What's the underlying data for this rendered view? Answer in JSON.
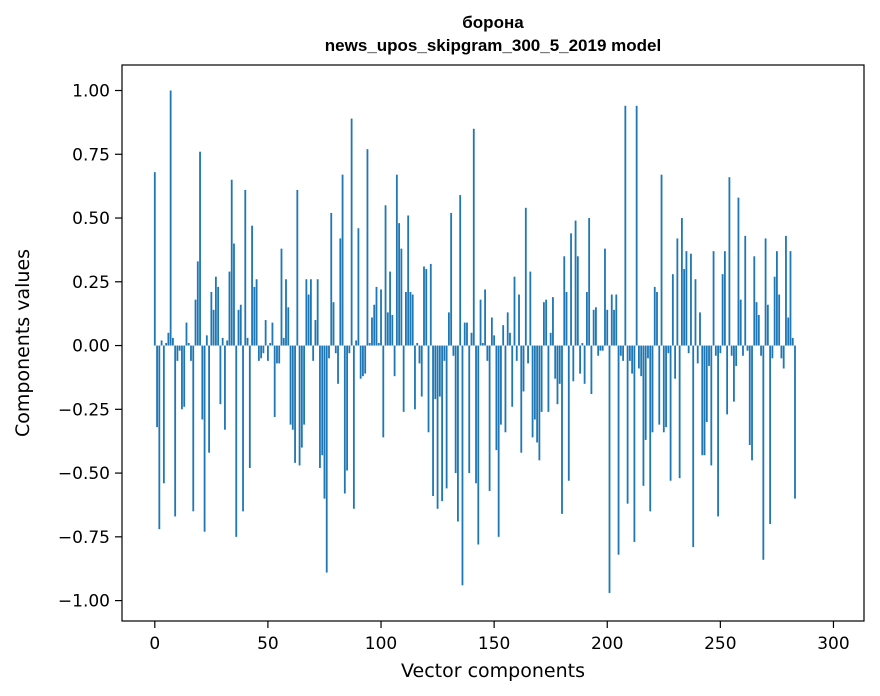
{
  "chart_data": {
    "type": "bar",
    "title_line1": "борона",
    "title_line2": "news_upos_skipgram_300_5_2019 model",
    "xlabel": "Vector components",
    "ylabel": "Components values",
    "xlim": [
      -14.5,
      313.5
    ],
    "ylim": [
      -1.08,
      1.1
    ],
    "xticks": [
      0,
      50,
      100,
      150,
      200,
      250,
      300
    ],
    "xtick_labels": [
      "0",
      "50",
      "100",
      "150",
      "200",
      "250",
      "300"
    ],
    "yticks": [
      1.0,
      0.75,
      0.5,
      0.25,
      0.0,
      -0.25,
      -0.5,
      -0.75,
      -1.0
    ],
    "ytick_labels": [
      "1.00",
      "0.75",
      "0.50",
      "0.25",
      "0.00",
      "−0.25",
      "−0.50",
      "−0.75",
      "−1.00"
    ],
    "bar_color": "#1f77b4",
    "values": [
      0.68,
      -0.32,
      -0.72,
      0.02,
      -0.54,
      0.01,
      0.05,
      1.0,
      0.03,
      -0.67,
      -0.06,
      -0.02,
      -0.25,
      -0.24,
      0.09,
      0.01,
      -0.06,
      -0.65,
      0.18,
      0.33,
      0.76,
      -0.29,
      -0.73,
      0.04,
      -0.42,
      0.21,
      0.14,
      0.27,
      0.23,
      -0.23,
      0.03,
      -0.33,
      0.02,
      0.29,
      0.65,
      0.4,
      -0.75,
      0.14,
      0.16,
      -0.65,
      0.61,
      0.03,
      -0.48,
      0.47,
      0.23,
      0.26,
      -0.06,
      -0.05,
      -0.03,
      0.1,
      -0.06,
      0.01,
      0.09,
      -0.28,
      -0.07,
      -0.07,
      0.38,
      0.03,
      0.26,
      0.15,
      -0.31,
      -0.33,
      -0.46,
      0.61,
      -0.47,
      -0.4,
      -0.31,
      0.26,
      0.2,
      0.26,
      -0.06,
      0.1,
      0.26,
      -0.48,
      -0.43,
      -0.6,
      -0.89,
      -0.05,
      0.52,
      0.17,
      -0.03,
      -0.15,
      0.42,
      0.67,
      -0.58,
      -0.49,
      -0.03,
      0.89,
      -0.64,
      0.02,
      0.46,
      -0.13,
      -0.12,
      -0.11,
      0.77,
      0.01,
      0.11,
      0.16,
      0.23,
      0.01,
      0.22,
      -0.36,
      0.55,
      0.13,
      0.29,
      0.12,
      -0.12,
      0.67,
      0.48,
      0.38,
      -0.26,
      0.21,
      0.51,
      0.21,
      0.2,
      -0.25,
      0.01,
      -0.07,
      -0.2,
      0.31,
      0.3,
      -0.34,
      0.32,
      -0.59,
      -0.21,
      -0.64,
      -0.2,
      -0.61,
      -0.06,
      -0.56,
      0.13,
      0.52,
      -0.04,
      -0.5,
      -0.69,
      0.59,
      -0.94,
      0.09,
      0.09,
      -0.5,
      0.05,
      0.85,
      -0.54,
      -0.78,
      0.18,
      0.01,
      0.22,
      -0.06,
      -0.57,
      0.11,
      0.04,
      -0.41,
      -0.75,
      -0.31,
      0.08,
      -0.34,
      0.13,
      0.05,
      -0.24,
      0.27,
      -0.06,
      0.2,
      -0.42,
      -0.18,
      0.54,
      -0.07,
      0.29,
      -0.36,
      -0.29,
      -0.38,
      -0.45,
      -0.26,
      0.17,
      0.18,
      -0.26,
      0.05,
      0.19,
      -0.13,
      -0.23,
      -0.15,
      -0.66,
      0.35,
      0.21,
      -0.53,
      0.44,
      -0.14,
      0.49,
      0.35,
      -0.11,
      0.01,
      -0.15,
      0.21,
      0.5,
      -0.19,
      0.14,
      0.15,
      -0.04,
      -0.02,
      -0.02,
      0.38,
      0.14,
      -0.97,
      0.2,
      0.14,
      0.2,
      -0.82,
      -0.04,
      -0.06,
      0.94,
      -0.62,
      -0.06,
      -0.11,
      -0.77,
      0.94,
      -0.09,
      -0.12,
      -0.55,
      -0.37,
      -0.05,
      -0.65,
      -0.34,
      0.23,
      0.21,
      -0.31,
      0.67,
      -0.34,
      -0.32,
      -0.03,
      -0.53,
      0.28,
      -0.13,
      0.42,
      -0.52,
      0.5,
      0.3,
      0.37,
      -0.03,
      0.36,
      -0.79,
      0.26,
      -0.07,
      0.13,
      -0.43,
      -0.43,
      -0.3,
      -0.08,
      -0.47,
      0.37,
      -0.04,
      -0.67,
      -0.03,
      0.28,
      0.37,
      -0.27,
      0.66,
      -0.04,
      -0.22,
      -0.08,
      0.58,
      0.18,
      -0.04,
      0.43,
      -0.02,
      -0.39,
      -0.45,
      0.35,
      0.17,
      0.12,
      -0.04,
      -0.84,
      0.42,
      0.16,
      -0.7,
      -0.05,
      0.27,
      0.37,
      0.2,
      -0.05,
      -0.09,
      0.43,
      0.11,
      0.37,
      0.03,
      -0.6
    ]
  }
}
